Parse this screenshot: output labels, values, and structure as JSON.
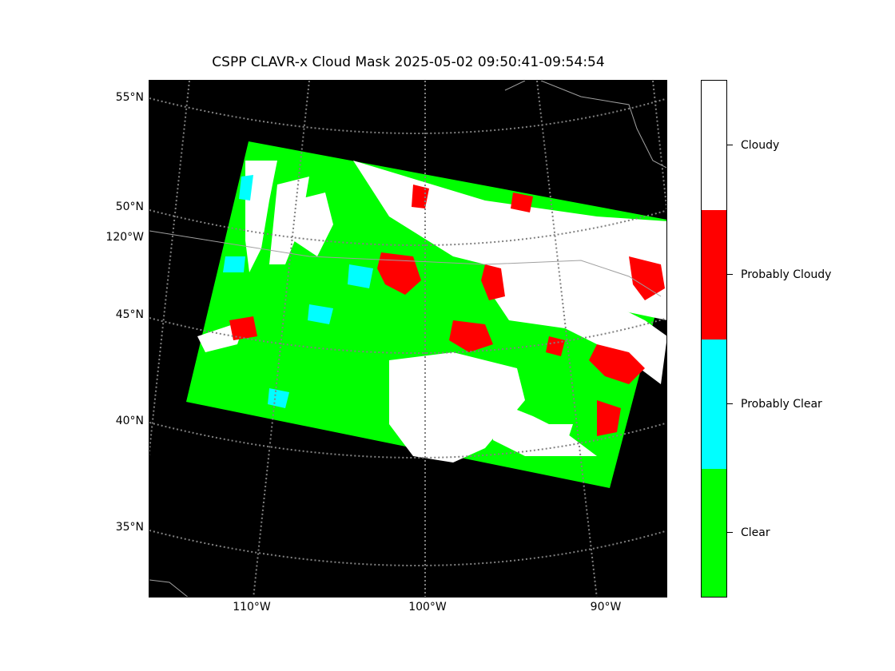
{
  "title": "CSPP CLAVR-x Cloud Mask 2025-05-02 09:50:41-09:54:54",
  "map": {
    "lat_labels": [
      "55°N",
      "50°N",
      "120°W",
      "45°N",
      "40°N",
      "35°N"
    ],
    "lon_labels": [
      "110°W",
      "100°W",
      "90°W"
    ],
    "background_color": "#000000",
    "gridline_color": "#808080"
  },
  "colorbar": {
    "categories": [
      {
        "label": "Cloudy",
        "color": "#ffffff"
      },
      {
        "label": "Probably Cloudy",
        "color": "#ff0000"
      },
      {
        "label": "Probably Clear",
        "color": "#00ffff"
      },
      {
        "label": "Clear",
        "color": "#00ff00"
      }
    ]
  }
}
